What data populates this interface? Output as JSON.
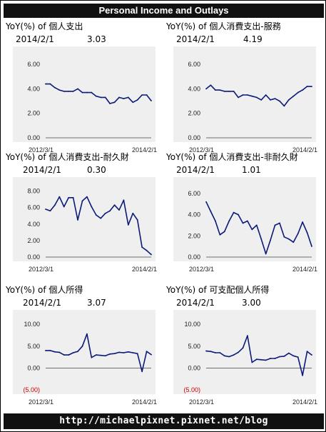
{
  "header": {
    "title": "Personal Income and Outlays"
  },
  "footer": {
    "url": "http://michaelpixnet.pixnet.net/blog"
  },
  "chart_data": [
    {
      "type": "line",
      "title": "YoY(%) of 個人支出",
      "latest_date": "2014/2/1",
      "latest_value": "3.03",
      "x_start_label": "2012/3/1",
      "x_end_label": "2014/2/1",
      "yticks": [
        "6.00",
        "4.00",
        "2.00",
        "0.00"
      ],
      "ylim": [
        0,
        7
      ],
      "values": [
        4.4,
        4.4,
        4.1,
        3.9,
        3.8,
        3.8,
        3.8,
        4.0,
        3.7,
        3.7,
        3.7,
        3.4,
        3.3,
        3.3,
        2.8,
        2.9,
        3.3,
        3.2,
        3.3,
        2.9,
        3.1,
        3.5,
        3.5,
        3.03
      ],
      "line_color": "#0b1a78"
    },
    {
      "type": "line",
      "title": "YoY(%) of 個人消費支出-服務",
      "latest_date": "2014/2/1",
      "latest_value": "4.19",
      "x_start_label": "2012/3/1",
      "x_end_label": "2014/2/1",
      "yticks": [
        "6.00",
        "4.00",
        "2.00",
        "0.00"
      ],
      "ylim": [
        0,
        7
      ],
      "values": [
        4.0,
        4.3,
        3.9,
        3.9,
        3.8,
        3.8,
        3.8,
        3.3,
        3.5,
        3.5,
        3.4,
        3.3,
        3.1,
        3.5,
        3.1,
        3.2,
        3.0,
        2.6,
        3.1,
        3.4,
        3.7,
        3.9,
        4.2,
        4.19
      ],
      "line_color": "#0b1a78"
    },
    {
      "type": "line",
      "title": "YoY(%) of 個人消費支出-耐久財",
      "latest_date": "2014/2/1",
      "latest_value": "0.30",
      "x_start_label": "2012/3/1",
      "x_end_label": "2014/2/1",
      "yticks": [
        "8.00",
        "6.00",
        "4.00",
        "2.00",
        "0.00"
      ],
      "ylim": [
        0,
        9
      ],
      "values": [
        5.8,
        5.6,
        6.3,
        7.3,
        6.1,
        7.2,
        7.2,
        4.5,
        6.8,
        7.3,
        6.1,
        5.1,
        4.7,
        5.3,
        5.6,
        6.3,
        5.7,
        6.9,
        3.9,
        5.3,
        4.5,
        1.2,
        0.8,
        0.3
      ],
      "line_color": "#0b1a78"
    },
    {
      "type": "line",
      "title": "YoY(%) of 個人消費支出-非耐久財",
      "latest_date": "2014/2/1",
      "latest_value": "1.01",
      "x_start_label": "2012/3/1",
      "x_end_label": "2014/2/1",
      "yticks": [
        "6.00",
        "4.00",
        "2.00",
        "0.00"
      ],
      "ylim": [
        0,
        7
      ],
      "values": [
        5.2,
        4.3,
        3.4,
        2.1,
        2.4,
        3.4,
        4.2,
        4.0,
        3.2,
        3.4,
        2.6,
        3.0,
        1.7,
        0.3,
        1.6,
        3.0,
        3.2,
        1.9,
        1.7,
        1.4,
        2.2,
        3.3,
        2.3,
        1.01
      ],
      "line_color": "#0b1a78"
    },
    {
      "type": "line",
      "title": "YoY(%) of 個人所得",
      "latest_date": "2014/2/1",
      "latest_value": "3.07",
      "x_start_label": "2012/3/1",
      "x_end_label": "2014/2/1",
      "yticks": [
        "10.00",
        "5.00",
        "0.00",
        "(5.00)"
      ],
      "ylim": [
        -5,
        12
      ],
      "values": [
        4.0,
        4.0,
        3.7,
        3.6,
        3.0,
        3.0,
        3.5,
        3.8,
        5.0,
        7.8,
        2.4,
        3.0,
        2.9,
        2.8,
        3.2,
        3.3,
        3.6,
        3.5,
        3.7,
        3.5,
        3.3,
        -0.8,
        3.8,
        3.07
      ],
      "line_color": "#0b1a78"
    },
    {
      "type": "line",
      "title": "YoY(%) of 可支配個人所得",
      "latest_date": "2014/2/1",
      "latest_value": "3.00",
      "x_start_label": "2012/3/1",
      "x_end_label": "2014/2/1",
      "yticks": [
        "10.00",
        "5.00",
        "0.00",
        "(5.00)"
      ],
      "ylim": [
        -5,
        12
      ],
      "values": [
        3.9,
        3.8,
        3.5,
        3.5,
        2.8,
        2.6,
        3.0,
        3.6,
        4.6,
        7.4,
        1.3,
        2.0,
        1.9,
        1.8,
        2.2,
        2.2,
        2.6,
        2.7,
        3.4,
        2.8,
        2.5,
        -1.7,
        3.8,
        3.0
      ],
      "line_color": "#0b1a78"
    }
  ]
}
